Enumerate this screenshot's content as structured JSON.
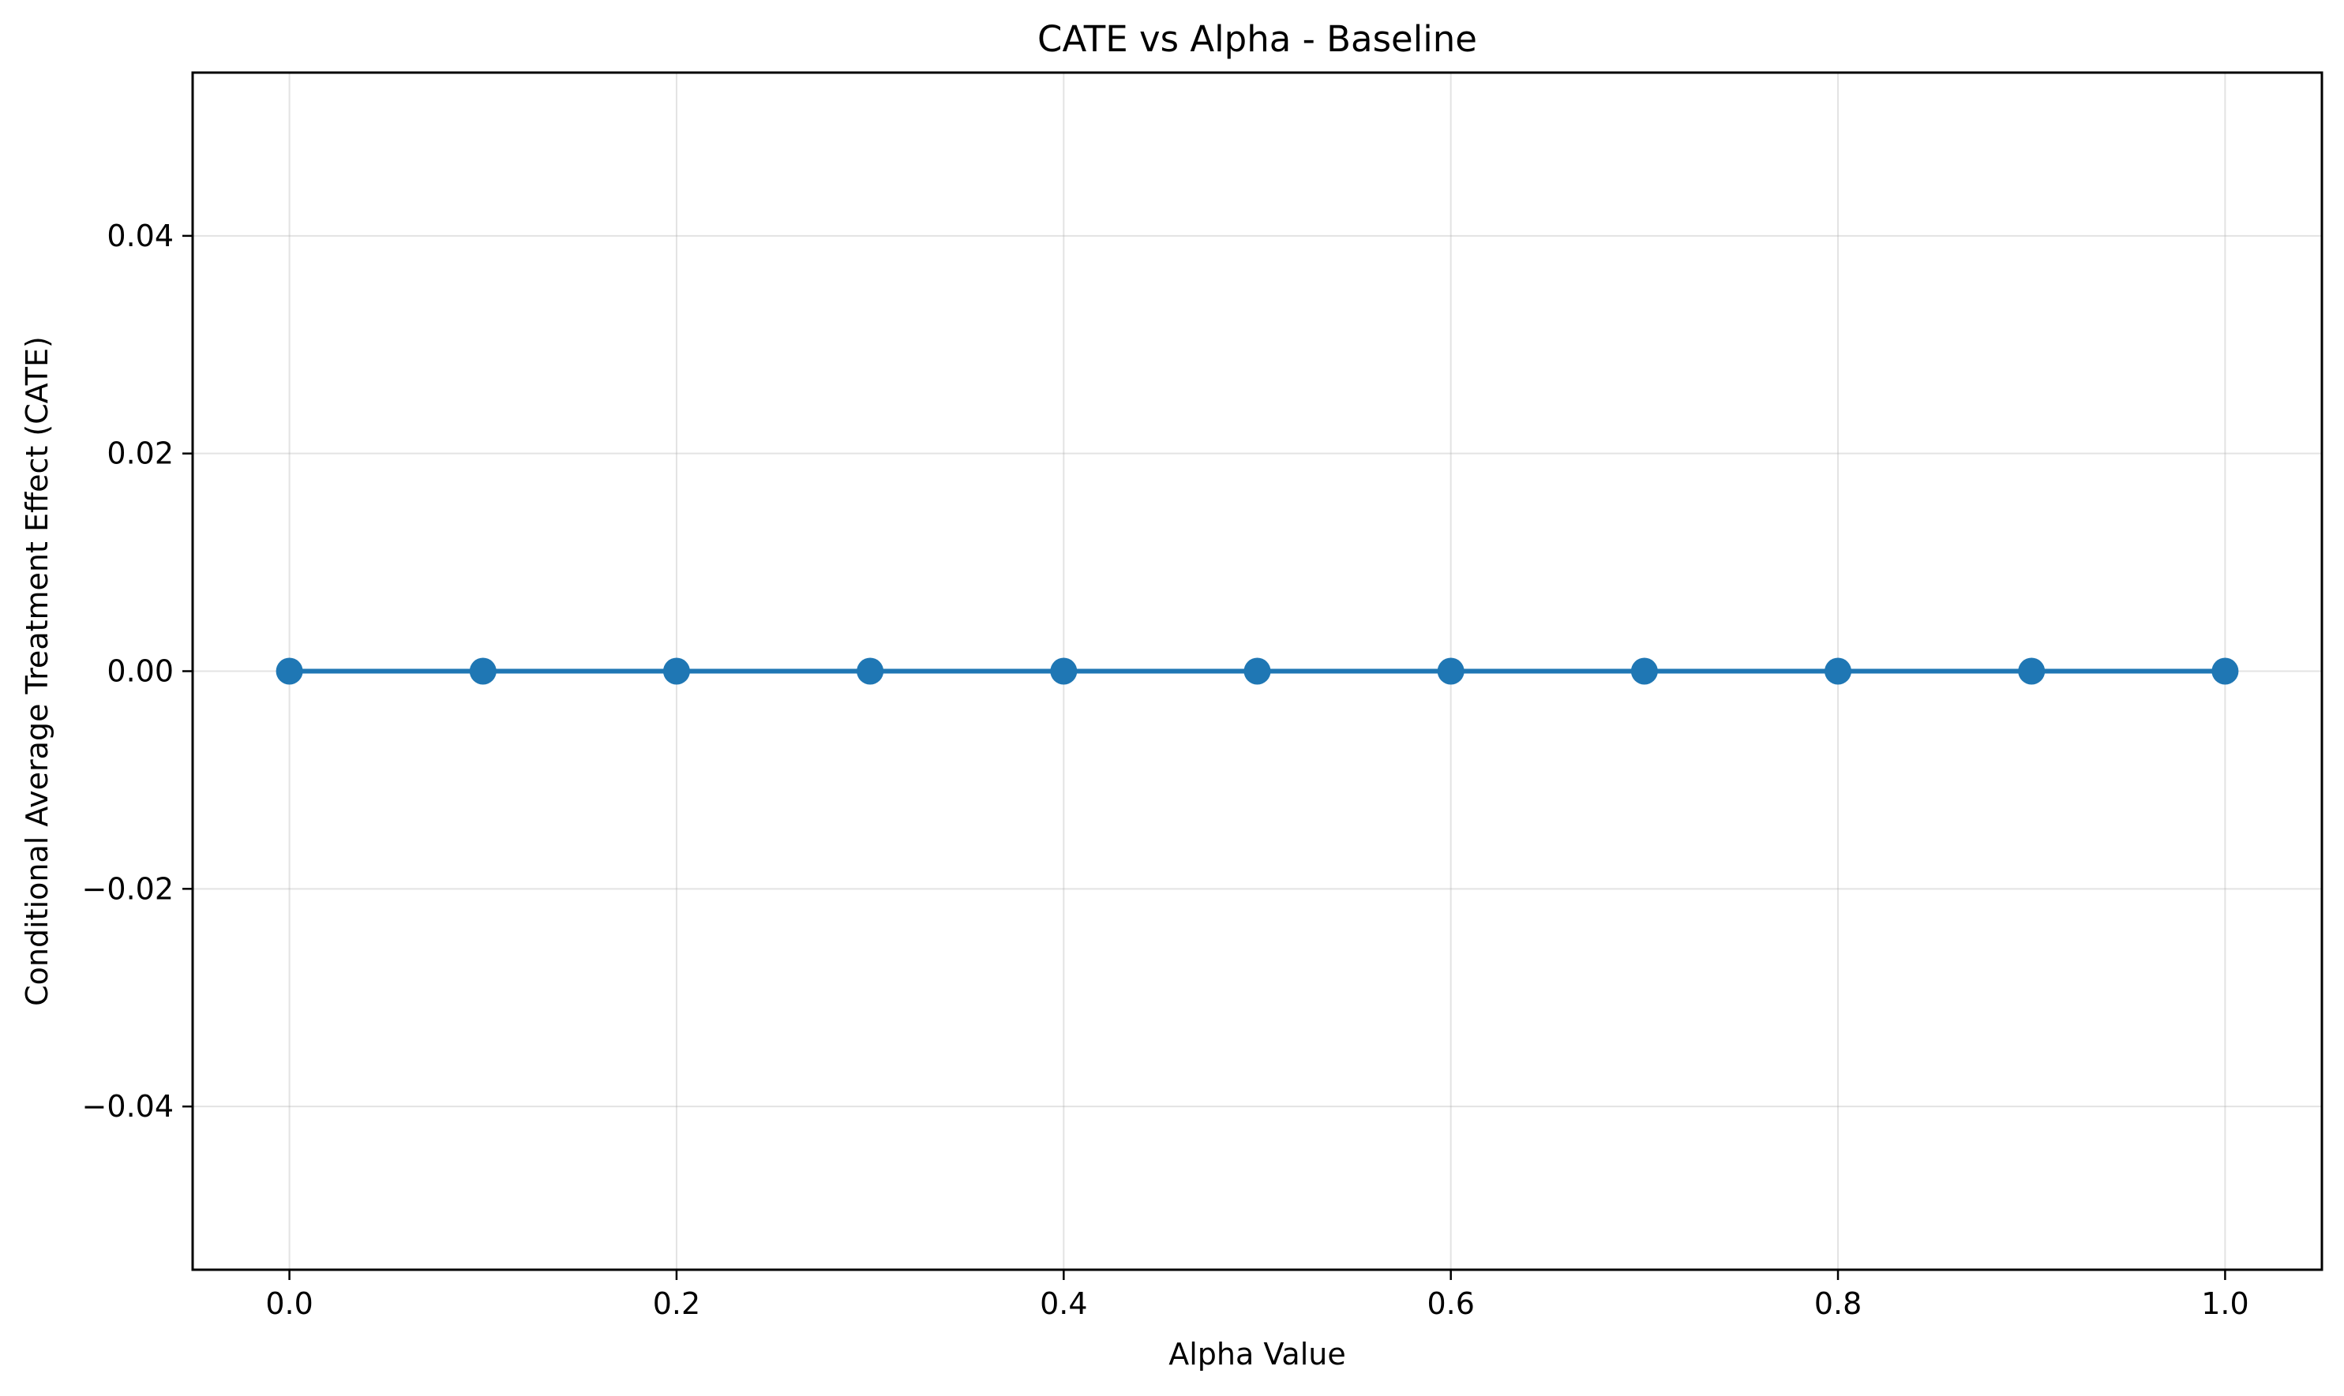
{
  "chart_data": {
    "type": "line",
    "title": "CATE vs Alpha - Baseline",
    "xlabel": "Alpha Value",
    "ylabel": "Conditional Average Treatment Effect (CATE)",
    "x": [
      0.0,
      0.1,
      0.2,
      0.3,
      0.4,
      0.5,
      0.6,
      0.7,
      0.8,
      0.9,
      1.0
    ],
    "series": [
      {
        "values": [
          0.0,
          0.0,
          0.0,
          0.0,
          0.0,
          0.0,
          0.0,
          0.0,
          0.0,
          0.0,
          0.0
        ],
        "color": "#1f77b4",
        "marker": "circle"
      }
    ],
    "xlim": [
      -0.05,
      1.05
    ],
    "ylim": [
      -0.055,
      0.055
    ],
    "xticks": [
      0.0,
      0.2,
      0.4,
      0.6,
      0.8,
      1.0
    ],
    "xtick_labels": [
      "0.0",
      "0.2",
      "0.4",
      "0.6",
      "0.8",
      "1.0"
    ],
    "yticks": [
      -0.04,
      -0.02,
      0.0,
      0.02,
      0.04
    ],
    "ytick_labels": [
      "−0.04",
      "−0.02",
      "0.00",
      "0.02",
      "0.04"
    ],
    "grid": true,
    "legend": false
  }
}
